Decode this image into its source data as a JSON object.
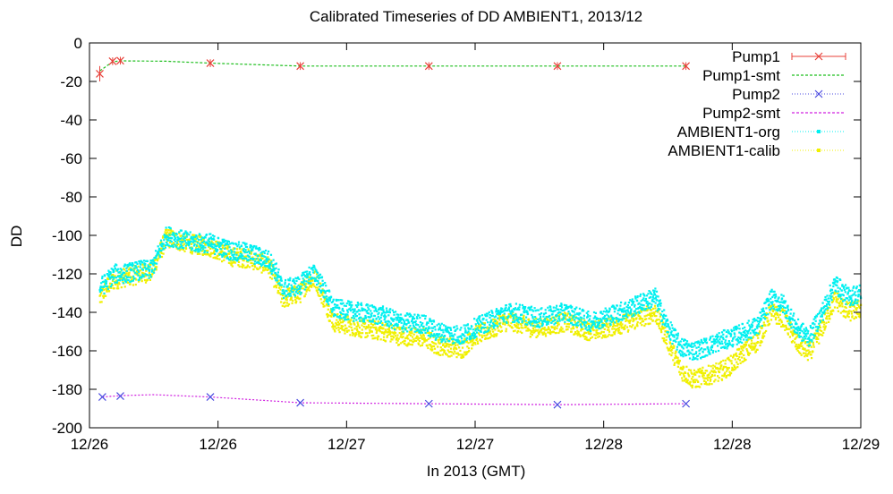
{
  "chart_data": {
    "type": "scatter",
    "title": "Calibrated Timeseries of DD AMBIENT1, 2013/12",
    "xlabel": "In 2013 (GMT)",
    "ylabel": "DD",
    "ylim": [
      -200,
      0
    ],
    "yticks": [
      0,
      -20,
      -40,
      -60,
      -80,
      -100,
      -120,
      -140,
      -160,
      -180,
      -200
    ],
    "xlim_days": [
      26.0,
      29.0
    ],
    "xticks": [
      {
        "value": 26.0,
        "label": "12/26"
      },
      {
        "value": 26.5,
        "label": "12/26"
      },
      {
        "value": 27.0,
        "label": "12/27"
      },
      {
        "value": 27.5,
        "label": "12/27"
      },
      {
        "value": 28.0,
        "label": "12/28"
      },
      {
        "value": 28.5,
        "label": "12/28"
      },
      {
        "value": 29.0,
        "label": "12/29"
      }
    ],
    "grid": false,
    "legend_position": "top-right",
    "colors": {
      "pump1": "#e8413a",
      "pump1_smt": "#1fbf1f",
      "pump2": "#4a4ae0",
      "pump2_smt": "#d020e0",
      "ambient_org": "#00f0f0",
      "ambient_calib": "#f0f000"
    },
    "series": [
      {
        "name": "Pump1",
        "style": "points-errorbars",
        "x": [
          26.04,
          26.09,
          26.12,
          26.47,
          26.82,
          27.32,
          27.82,
          28.32
        ],
        "y": [
          -16,
          -9.5,
          -9.2,
          -10.5,
          -12,
          -12,
          -12,
          -12
        ]
      },
      {
        "name": "Pump1-smt",
        "style": "line",
        "x": [
          26.04,
          26.09,
          26.12,
          26.3,
          26.47,
          26.82,
          27.32,
          27.82,
          28.32
        ],
        "y": [
          -14.5,
          -9.8,
          -9.3,
          -9.5,
          -10.5,
          -12,
          -12,
          -12,
          -12
        ]
      },
      {
        "name": "Pump2",
        "style": "points",
        "x": [
          26.05,
          26.12,
          26.47,
          26.82,
          27.32,
          27.82,
          28.32
        ],
        "y": [
          -184,
          -183.5,
          -184,
          -187,
          -187.5,
          -188,
          -187.5
        ]
      },
      {
        "name": "Pump2-smt",
        "style": "line",
        "x": [
          26.05,
          26.12,
          26.25,
          26.47,
          26.82,
          27.32,
          27.82,
          28.32
        ],
        "y": [
          -184,
          -183.3,
          -182.8,
          -184,
          -187,
          -187.5,
          -188,
          -187.5
        ]
      },
      {
        "name": "AMBIENT1-org",
        "style": "dense-points",
        "x": [
          26.04,
          26.06,
          26.08,
          26.1,
          26.13,
          26.2,
          26.24,
          26.3,
          26.35,
          26.38,
          26.42,
          26.47,
          26.55,
          26.62,
          26.7,
          26.73,
          26.75,
          26.82,
          26.85,
          26.88,
          26.95,
          27.05,
          27.15,
          27.2,
          27.3,
          27.35,
          27.45,
          27.5,
          27.58,
          27.6,
          27.65,
          27.72,
          27.75,
          27.85,
          27.95,
          28.1,
          28.2,
          28.25,
          28.3,
          28.35,
          28.4,
          28.45,
          28.5,
          28.55,
          28.6,
          28.65,
          28.7,
          28.75,
          28.8,
          28.85,
          28.9,
          28.95,
          29.0
        ],
        "y": [
          -127,
          -125,
          -122,
          -120,
          -120,
          -118,
          -118,
          -100,
          -102,
          -103,
          -104,
          -104,
          -108,
          -109,
          -113,
          -120,
          -128,
          -126,
          -121,
          -120,
          -138,
          -140,
          -142,
          -145,
          -146,
          -150,
          -152,
          -148,
          -143,
          -141,
          -140,
          -142,
          -143,
          -140,
          -145,
          -138,
          -132,
          -148,
          -158,
          -160,
          -158,
          -155,
          -153,
          -150,
          -147,
          -133,
          -136,
          -148,
          -153,
          -140,
          -125,
          -132,
          -130
        ]
      },
      {
        "name": "AMBIENT1-calib",
        "style": "dense-points",
        "x": [
          26.04,
          26.06,
          26.08,
          26.1,
          26.13,
          26.2,
          26.24,
          26.3,
          26.35,
          26.38,
          26.42,
          26.47,
          26.55,
          26.62,
          26.7,
          26.73,
          26.75,
          26.82,
          26.85,
          26.88,
          26.95,
          27.05,
          27.15,
          27.2,
          27.3,
          27.35,
          27.45,
          27.5,
          27.58,
          27.6,
          27.65,
          27.72,
          27.75,
          27.85,
          27.95,
          28.1,
          28.2,
          28.25,
          28.3,
          28.35,
          28.4,
          28.45,
          28.5,
          28.55,
          28.6,
          28.65,
          28.7,
          28.75,
          28.8,
          28.85,
          28.9,
          28.95,
          29.0
        ],
        "y": [
          -133,
          -128,
          -125,
          -123,
          -122,
          -120,
          -119,
          -101,
          -103,
          -104,
          -105,
          -106,
          -111,
          -112,
          -116,
          -126,
          -133,
          -130,
          -124,
          -123,
          -145,
          -148,
          -150,
          -152,
          -153,
          -157,
          -159,
          -152,
          -148,
          -145,
          -145,
          -148,
          -148,
          -145,
          -150,
          -145,
          -140,
          -155,
          -170,
          -175,
          -173,
          -171,
          -167,
          -160,
          -155,
          -140,
          -143,
          -156,
          -161,
          -148,
          -133,
          -140,
          -138
        ]
      }
    ]
  }
}
